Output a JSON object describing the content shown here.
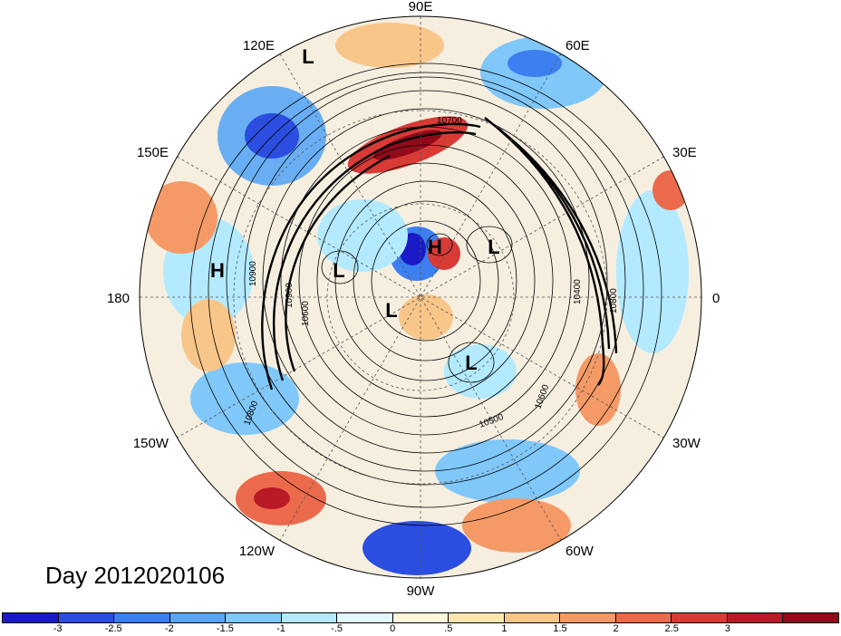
{
  "map": {
    "longitude_labels": [
      {
        "text": "90E",
        "lon": 90
      },
      {
        "text": "60E",
        "lon": 60
      },
      {
        "text": "30E",
        "lon": 30
      },
      {
        "text": "0",
        "lon": 0
      },
      {
        "text": "30W",
        "lon": -30
      },
      {
        "text": "60W",
        "lon": -60
      },
      {
        "text": "90W",
        "lon": -90
      },
      {
        "text": "120W",
        "lon": -120
      },
      {
        "text": "150W",
        "lon": -150
      },
      {
        "text": "180",
        "lon": 180
      },
      {
        "text": "150E",
        "lon": 150
      },
      {
        "text": "120E",
        "lon": 120
      }
    ],
    "pressure_systems": [
      {
        "text": "L",
        "id": "l-siberia-north"
      },
      {
        "text": "H",
        "id": "h-pacific"
      },
      {
        "text": "L",
        "id": "l-east-siberia"
      },
      {
        "text": "H",
        "id": "h-arctic"
      },
      {
        "text": "L",
        "id": "l-scandinavia"
      },
      {
        "text": "L",
        "id": "l-arctic-canada"
      },
      {
        "text": "L",
        "id": "l-north-atlantic"
      }
    ],
    "contour_labels": [
      {
        "text": "10900",
        "id": "c1"
      },
      {
        "text": "10900",
        "id": "c2"
      },
      {
        "text": "10800",
        "id": "c3"
      },
      {
        "text": "10600",
        "id": "c4"
      },
      {
        "text": "10500",
        "id": "c5"
      },
      {
        "text": "10400",
        "id": "c6"
      },
      {
        "text": "10800",
        "id": "c7"
      },
      {
        "text": "10600",
        "id": "c8"
      },
      {
        "text": "10700",
        "id": "c9"
      }
    ],
    "date_label": "Day 2012020106"
  },
  "colorbar": {
    "colors": [
      "#1a1ac8",
      "#2b4ee0",
      "#3c7ff0",
      "#5aa6f5",
      "#80c8fa",
      "#b4eaff",
      "#e2f8ff",
      "#fff6dc",
      "#fde6ad",
      "#f9c68a",
      "#f59a66",
      "#ec6a4c",
      "#d83a36",
      "#b81a26",
      "#900a1a"
    ],
    "ticks": [
      "-3",
      "-2.5",
      "-2",
      "-1.5",
      "-1",
      "-.5",
      "0",
      ".5",
      "1",
      "1.5",
      "2",
      "2.5",
      "3"
    ]
  }
}
